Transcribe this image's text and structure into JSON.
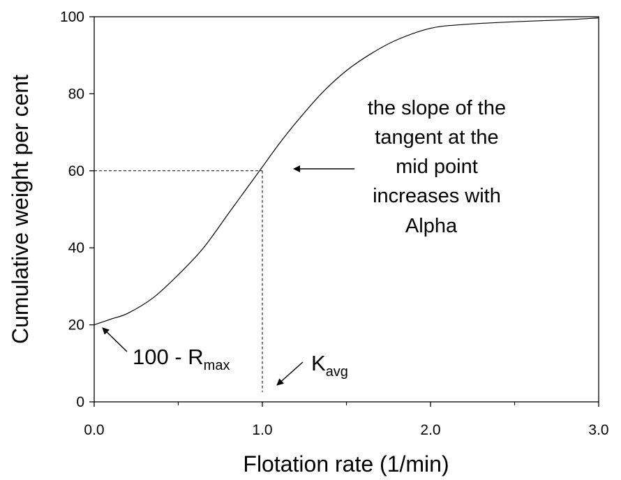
{
  "chart_data": {
    "type": "line",
    "xlabel": "Flotation rate (1/min)",
    "ylabel": "Cumulative weight per cent",
    "xlim": [
      0,
      3.0
    ],
    "ylim": [
      0,
      100
    ],
    "x_ticks": [
      0.0,
      1.0,
      2.0,
      3.0
    ],
    "x_tick_labels": [
      "0.0",
      "1.0",
      "2.0",
      "3.0"
    ],
    "x_minor_ticks": [
      0.5,
      1.5,
      2.5
    ],
    "y_ticks": [
      0,
      20,
      40,
      60,
      80,
      100
    ],
    "y_tick_labels": [
      "0",
      "20",
      "40",
      "60",
      "80",
      "100"
    ],
    "grid": false,
    "legend": "none",
    "series": [
      {
        "x": [
          0.0,
          0.1,
          0.2,
          0.35,
          0.5,
          0.65,
          0.8,
          0.9,
          1.0,
          1.1,
          1.2,
          1.35,
          1.5,
          1.65,
          1.8,
          2.0,
          2.2,
          2.5,
          2.8,
          3.0
        ],
        "values": [
          20,
          21.5,
          23,
          27,
          33,
          40,
          49,
          55,
          61,
          67,
          72.5,
          80,
          86,
          90.5,
          94,
          97,
          98,
          98.7,
          99.2,
          99.7
        ]
      }
    ],
    "guide_point": {
      "x": 1.0,
      "y": 60
    },
    "annotations": {
      "slope_text": [
        "the slope of the",
        "tangent at the",
        "mid point",
        "increases with",
        "Alpha"
      ],
      "rmax_prefix": "100 - R",
      "rmax_sub": "max",
      "kavg_main": "K",
      "kavg_sub": "avg"
    }
  }
}
